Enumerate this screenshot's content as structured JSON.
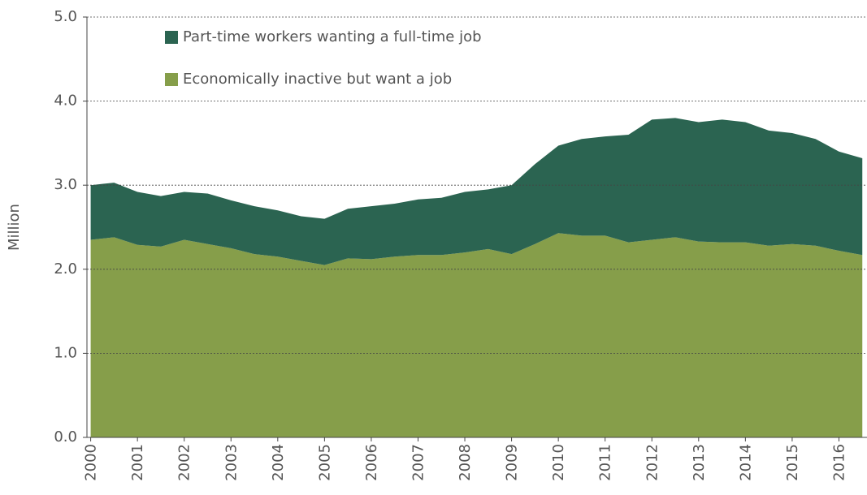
{
  "chart_data": {
    "type": "stacked_area",
    "y_label": "Million",
    "x": [
      2000,
      2000.5,
      2001,
      2001.5,
      2002,
      2002.5,
      2003,
      2003.5,
      2004,
      2004.5,
      2005,
      2005.5,
      2006,
      2006.5,
      2007,
      2007.5,
      2008,
      2008.5,
      2009,
      2009.5,
      2010,
      2010.5,
      2011,
      2011.5,
      2012,
      2012.5,
      2013,
      2013.5,
      2014,
      2014.5,
      2015,
      2015.5,
      2016,
      2016.5
    ],
    "series": [
      {
        "name": "Part-time workers wanting a full-time job",
        "color": "#2b6451",
        "values": [
          0.65,
          0.65,
          0.63,
          0.6,
          0.57,
          0.6,
          0.57,
          0.57,
          0.55,
          0.53,
          0.55,
          0.59,
          0.63,
          0.63,
          0.66,
          0.68,
          0.72,
          0.71,
          0.82,
          0.95,
          1.04,
          1.15,
          1.18,
          1.28,
          1.43,
          1.42,
          1.42,
          1.46,
          1.43,
          1.37,
          1.32,
          1.27,
          1.18,
          1.15
        ]
      },
      {
        "name": "Economically inactive but want a job",
        "color": "#869e4a",
        "values": [
          2.35,
          2.38,
          2.29,
          2.27,
          2.35,
          2.3,
          2.25,
          2.18,
          2.15,
          2.1,
          2.05,
          2.13,
          2.12,
          2.15,
          2.17,
          2.17,
          2.2,
          2.24,
          2.18,
          2.3,
          2.43,
          2.4,
          2.4,
          2.32,
          2.35,
          2.38,
          2.33,
          2.32,
          2.32,
          2.28,
          2.3,
          2.28,
          2.22,
          2.17
        ]
      }
    ],
    "xlim": [
      1999.92,
      2016.6
    ],
    "xticks": [
      2000,
      2001,
      2002,
      2003,
      2004,
      2005,
      2006,
      2007,
      2008,
      2009,
      2010,
      2011,
      2012,
      2013,
      2014,
      2015,
      2016
    ],
    "ylim": [
      0,
      5
    ],
    "yticks": [
      {
        "value": 0,
        "label": "0.0"
      },
      {
        "value": 1,
        "label": "1.0"
      },
      {
        "value": 2,
        "label": "2.0"
      },
      {
        "value": 3,
        "label": "3.0"
      },
      {
        "value": 4,
        "label": "4.0"
      },
      {
        "value": 5,
        "label": "5.0"
      }
    ],
    "grid": true
  }
}
